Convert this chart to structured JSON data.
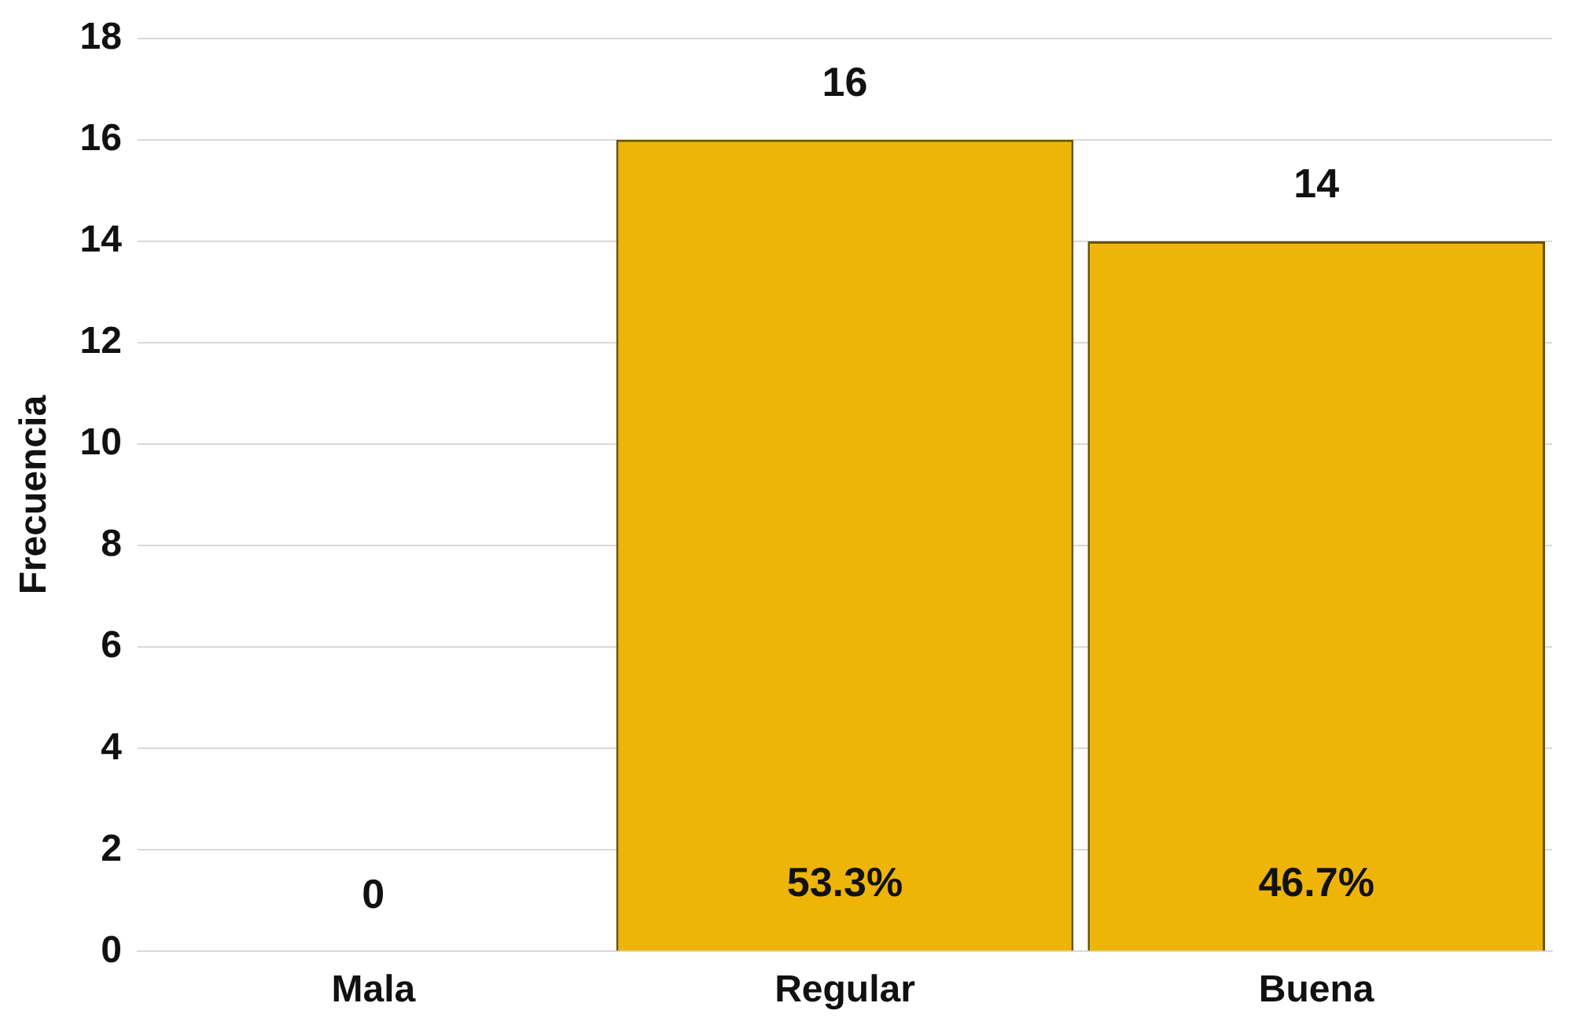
{
  "chart_data": {
    "type": "bar",
    "ylabel": "Frecuencia",
    "categories": [
      "Mala",
      "Regular",
      "Buena"
    ],
    "values": [
      0,
      16,
      14
    ],
    "color": "#eeb508",
    "ylim": [
      0,
      18
    ],
    "yticks": [
      0,
      2,
      4,
      6,
      8,
      10,
      12,
      14,
      16,
      18
    ],
    "grid": "y",
    "data_labels": true,
    "annotations": [
      "53.3%",
      "46.7%"
    ]
  }
}
